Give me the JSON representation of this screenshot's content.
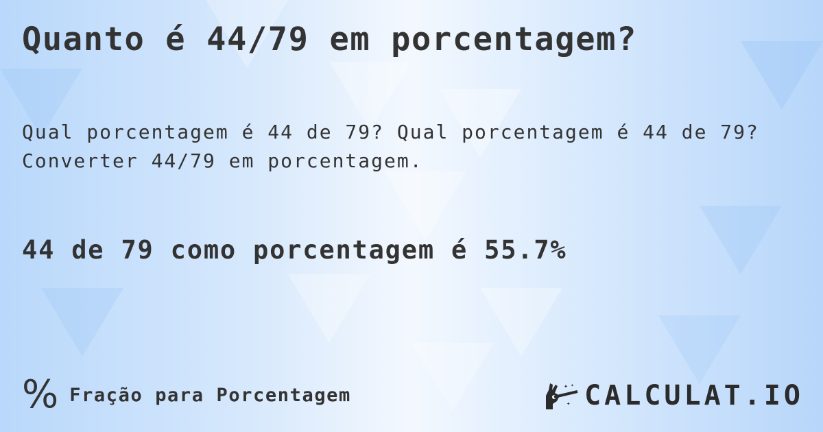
{
  "title": "Quanto é 44/79 em porcentagem?",
  "description_line1": "Qual porcentagem é 44 de 79? Qual porcentagem é 44 de 79?",
  "description_line2": "Converter 44/79 em porcentagem.",
  "result": "44 de 79 como porcentagem é 55.7%",
  "footer": {
    "icon": "percent-icon",
    "label": "Fração para Porcentagem"
  },
  "logo": {
    "text": "CALCULAT.IO",
    "icon": "magic-hand-wand-icon"
  },
  "colors": {
    "text": "#333333",
    "background_accent": "#b9d8fb"
  }
}
